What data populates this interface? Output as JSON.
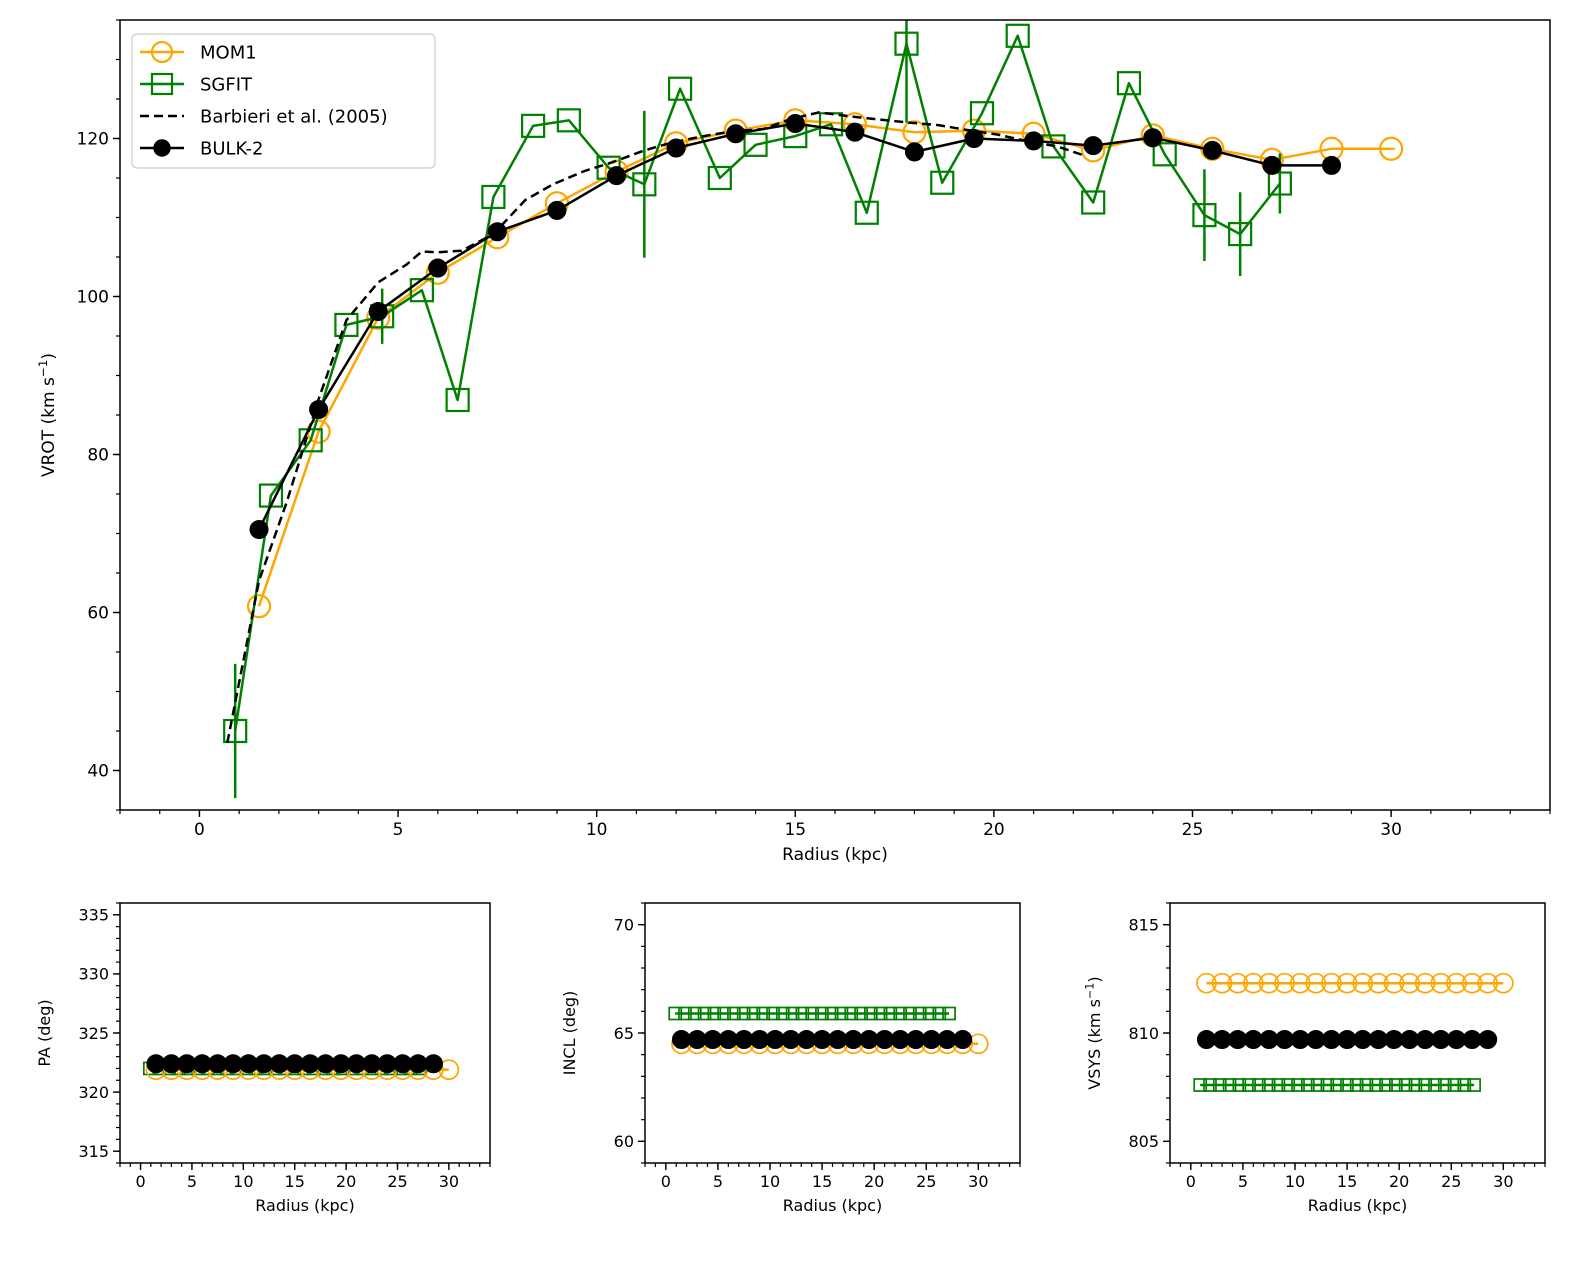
{
  "colors": {
    "mom1": "#ffa500",
    "sgfit": "#008000",
    "barbieri": "#000000",
    "bulk2": "#000000"
  },
  "legend": {
    "placement": "upper-left",
    "entries": [
      {
        "key": "mom1",
        "label": "MOM1",
        "marker": "open-circle",
        "line": "solid"
      },
      {
        "key": "sgfit",
        "label": "SGFIT",
        "marker": "open-square",
        "line": "solid"
      },
      {
        "key": "barbieri",
        "label": "Barbieri et al. (2005)",
        "marker": "none",
        "line": "dashed"
      },
      {
        "key": "bulk2",
        "label": "BULK-2",
        "marker": "filled-circle",
        "line": "solid"
      }
    ]
  },
  "chart_data": [
    {
      "id": "main",
      "type": "line",
      "xlabel": "Radius (kpc)",
      "ylabel": "VROT (km s",
      "ylabel_sup": "−1",
      "ylabel_end": ")",
      "xlim": [
        -2,
        34
      ],
      "ylim": [
        35,
        135
      ],
      "xticks": [
        0,
        5,
        10,
        15,
        20,
        25,
        30
      ],
      "yticks": [
        40,
        60,
        80,
        100,
        120
      ],
      "xminor": 1,
      "yminor": 5,
      "series": [
        {
          "key": "mom1",
          "name": "MOM1",
          "x": [
            1.5,
            3.0,
            4.5,
            6.0,
            7.5,
            9.0,
            10.5,
            12.0,
            13.5,
            15.0,
            16.5,
            18.0,
            19.5,
            21.0,
            22.5,
            24.0,
            25.5,
            27.0,
            28.5,
            30.0
          ],
          "y": [
            60.8,
            82.9,
            97.3,
            103.0,
            107.5,
            111.8,
            115.8,
            119.4,
            121.0,
            122.3,
            121.8,
            120.8,
            121.0,
            120.6,
            118.5,
            120.4,
            118.7,
            117.3,
            118.7,
            118.7
          ],
          "xerr": [
            0,
            0,
            0,
            0,
            0,
            0,
            0,
            0,
            0,
            0,
            0,
            0,
            0,
            0,
            0,
            0,
            0,
            0,
            0,
            0.1
          ]
        },
        {
          "key": "sgfit",
          "name": "SGFIT",
          "x": [
            0.9,
            1.8,
            2.8,
            3.7,
            4.6,
            5.6,
            6.5,
            7.4,
            8.4,
            9.3,
            10.3,
            11.2,
            12.1,
            13.1,
            14.0,
            15.0,
            15.9,
            16.8,
            17.8,
            18.7,
            19.7,
            20.6,
            21.5,
            22.5,
            23.4,
            24.3,
            25.3,
            26.2,
            27.2
          ],
          "y": [
            45.0,
            74.8,
            81.8,
            96.4,
            97.5,
            100.8,
            86.9,
            112.6,
            121.6,
            122.3,
            116.3,
            114.2,
            126.3,
            115.0,
            119.2,
            120.3,
            121.8,
            110.6,
            132.0,
            114.4,
            123.2,
            133.0,
            119.0,
            111.9,
            127.0,
            118.0,
            110.3,
            107.9,
            114.3
          ],
          "yerr": [
            8.5,
            0,
            0,
            0,
            3.5,
            0,
            0,
            0,
            0,
            0,
            0,
            9.3,
            0,
            0,
            0,
            0,
            0,
            0,
            10,
            0,
            0,
            0,
            0,
            0,
            0,
            0,
            5.8,
            5.3,
            3.8
          ]
        },
        {
          "key": "barbieri",
          "name": "Barbieri et al. (2005)",
          "x": [
            0.7,
            1.5,
            2.2,
            3.0,
            3.7,
            4.5,
            5.2,
            5.6,
            6.0,
            6.6,
            7.4,
            8.2,
            8.9,
            9.7,
            10.4,
            11.2,
            11.9,
            12.7,
            13.4,
            14.2,
            14.9,
            15.6,
            16.4,
            17.1,
            17.9,
            18.6,
            19.3,
            20.1,
            20.8,
            21.6,
            22.3
          ],
          "y": [
            43.5,
            64.0,
            74.0,
            87.0,
            97.0,
            101.8,
            104.0,
            105.7,
            105.6,
            105.8,
            107.9,
            112.2,
            114.2,
            115.9,
            117.0,
            118.5,
            119.5,
            120.3,
            120.9,
            121.2,
            122.5,
            123.3,
            122.8,
            122.4,
            122.0,
            121.7,
            121.1,
            120.5,
            119.7,
            119.0,
            117.8
          ]
        },
        {
          "key": "bulk2",
          "name": "BULK-2",
          "x": [
            1.5,
            3.0,
            4.5,
            6.0,
            7.5,
            9.0,
            10.5,
            12.0,
            13.5,
            15.0,
            16.5,
            18.0,
            19.5,
            21.0,
            22.5,
            24.0,
            25.5,
            27.0,
            28.5
          ],
          "y": [
            70.5,
            85.7,
            98.1,
            103.6,
            108.2,
            110.9,
            115.3,
            118.8,
            120.6,
            121.9,
            120.8,
            118.3,
            120.0,
            119.7,
            119.1,
            120.1,
            118.5,
            116.6,
            116.6
          ]
        }
      ]
    },
    {
      "id": "pa",
      "type": "line",
      "xlabel": "Radius (kpc)",
      "ylabel": "PA (deg)",
      "xlim": [
        -2,
        34
      ],
      "ylim": [
        314,
        336
      ],
      "xticks": [
        0,
        5,
        10,
        15,
        20,
        25,
        30
      ],
      "yticks": [
        315,
        320,
        325,
        330,
        335
      ],
      "xminor": 1,
      "yminor": 1,
      "series": [
        {
          "key": "sgfit",
          "name": "SGFIT",
          "y": 322.0,
          "n": 29,
          "x0": 0.9,
          "dx": 0.939
        },
        {
          "key": "mom1",
          "name": "MOM1",
          "y": 321.9,
          "n": 20,
          "x0": 1.5,
          "dx": 1.5
        },
        {
          "key": "bulk2",
          "name": "BULK-2",
          "y": 322.4,
          "n": 19,
          "x0": 1.5,
          "dx": 1.5
        }
      ]
    },
    {
      "id": "incl",
      "type": "line",
      "xlabel": "Radius (kpc)",
      "ylabel": "INCL (deg)",
      "xlim": [
        -2,
        34
      ],
      "ylim": [
        59,
        71
      ],
      "xticks": [
        0,
        5,
        10,
        15,
        20,
        25,
        30
      ],
      "yticks": [
        60,
        65,
        70
      ],
      "xminor": 1,
      "yminor": 1,
      "series": [
        {
          "key": "sgfit",
          "name": "SGFIT",
          "y": 65.9,
          "n": 29,
          "x0": 0.9,
          "dx": 0.939
        },
        {
          "key": "mom1",
          "name": "MOM1",
          "y": 64.5,
          "n": 20,
          "x0": 1.5,
          "dx": 1.5
        },
        {
          "key": "bulk2",
          "name": "BULK-2",
          "y": 64.7,
          "n": 19,
          "x0": 1.5,
          "dx": 1.5
        }
      ]
    },
    {
      "id": "vsys",
      "type": "line",
      "xlabel": "Radius (kpc)",
      "ylabel": "VSYS (km s",
      "ylabel_sup": "−1",
      "ylabel_end": ")",
      "xlim": [
        -2,
        34
      ],
      "ylim": [
        804,
        816
      ],
      "xticks": [
        0,
        5,
        10,
        15,
        20,
        25,
        30
      ],
      "yticks": [
        805,
        810,
        815
      ],
      "xminor": 1,
      "yminor": 1,
      "series": [
        {
          "key": "sgfit",
          "name": "SGFIT",
          "y": 807.6,
          "n": 29,
          "x0": 0.9,
          "dx": 0.939
        },
        {
          "key": "mom1",
          "name": "MOM1",
          "y": 812.3,
          "n": 20,
          "x0": 1.5,
          "dx": 1.5
        },
        {
          "key": "bulk2",
          "name": "BULK-2",
          "y": 809.7,
          "n": 19,
          "x0": 1.5,
          "dx": 1.5
        }
      ]
    }
  ]
}
